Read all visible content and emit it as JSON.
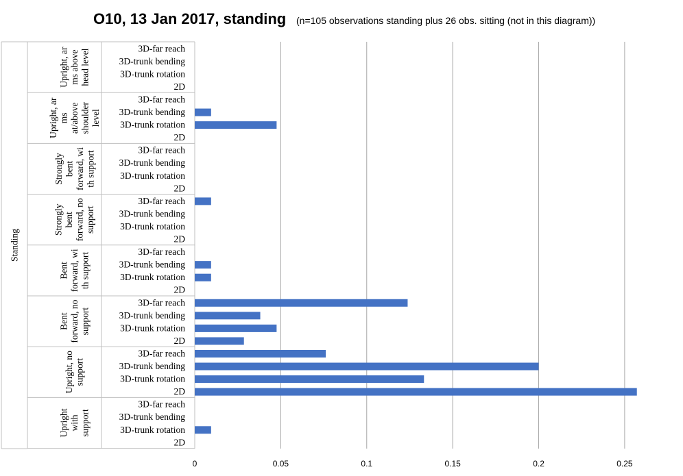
{
  "chart_data": {
    "type": "bar",
    "orientation": "horizontal",
    "title": "O10, 13 Jan 2017, standing",
    "subtitle": "(n=105 observations standing plus 26 obs. sitting (not in this diagram))",
    "outer_group": "Standing",
    "xlim": [
      0,
      0.26
    ],
    "xticks": [
      0,
      0.05,
      0.1,
      0.15,
      0.2,
      0.25
    ],
    "grid": true,
    "bar_color": "#4472c4",
    "groups": [
      {
        "label": "Upright, arms above head level",
        "label_lines": [
          "Upright, ar",
          "ms above",
          "head level"
        ],
        "items": [
          {
            "category": "3D-far reach",
            "value": 0
          },
          {
            "category": "3D-trunk bending",
            "value": 0
          },
          {
            "category": "3D-trunk rotation",
            "value": 0
          },
          {
            "category": "2D",
            "value": 0
          }
        ]
      },
      {
        "label": "Upright, arms at/above shoulder level",
        "label_lines": [
          "Upright, ar",
          "ms",
          "at/above",
          "shoulder",
          "level"
        ],
        "items": [
          {
            "category": "3D-far reach",
            "value": 0
          },
          {
            "category": "3D-trunk bending",
            "value": 0.0095
          },
          {
            "category": "3D-trunk rotation",
            "value": 0.0476
          },
          {
            "category": "2D",
            "value": 0
          }
        ]
      },
      {
        "label": "Strongly bent forward, with support",
        "label_lines": [
          "Strongly",
          "bent",
          "forward, wi",
          "th support"
        ],
        "items": [
          {
            "category": "3D-far reach",
            "value": 0
          },
          {
            "category": "3D-trunk bending",
            "value": 0
          },
          {
            "category": "3D-trunk rotation",
            "value": 0
          },
          {
            "category": "2D",
            "value": 0
          }
        ]
      },
      {
        "label": "Strongly bent forward, no support",
        "label_lines": [
          "Strongly",
          "bent",
          "forward, no",
          "support"
        ],
        "items": [
          {
            "category": "3D-far reach",
            "value": 0.0095
          },
          {
            "category": "3D-trunk bending",
            "value": 0
          },
          {
            "category": "3D-trunk rotation",
            "value": 0
          },
          {
            "category": "2D",
            "value": 0
          }
        ]
      },
      {
        "label": "Bent forward, with support",
        "label_lines": [
          "Bent",
          "forward, wi",
          "th support"
        ],
        "items": [
          {
            "category": "3D-far reach",
            "value": 0
          },
          {
            "category": "3D-trunk bending",
            "value": 0.0095
          },
          {
            "category": "3D-trunk rotation",
            "value": 0.0095
          },
          {
            "category": "2D",
            "value": 0
          }
        ]
      },
      {
        "label": "Bent forward, no support",
        "label_lines": [
          "Bent",
          "forward, no",
          "support"
        ],
        "items": [
          {
            "category": "3D-far reach",
            "value": 0.1238
          },
          {
            "category": "3D-trunk bending",
            "value": 0.0381
          },
          {
            "category": "3D-trunk rotation",
            "value": 0.0476
          },
          {
            "category": "2D",
            "value": 0.0286
          }
        ]
      },
      {
        "label": "Upright, no support",
        "label_lines": [
          "Upright, no",
          "support"
        ],
        "items": [
          {
            "category": "3D-far reach",
            "value": 0.0762
          },
          {
            "category": "3D-trunk bending",
            "value": 0.2
          },
          {
            "category": "3D-trunk rotation",
            "value": 0.1333
          },
          {
            "category": "2D",
            "value": 0.2571
          }
        ]
      },
      {
        "label": "Upright with support",
        "label_lines": [
          "Upright",
          "with",
          "support"
        ],
        "items": [
          {
            "category": "3D-far reach",
            "value": 0
          },
          {
            "category": "3D-trunk bending",
            "value": 0
          },
          {
            "category": "3D-trunk rotation",
            "value": 0.0095
          },
          {
            "category": "2D",
            "value": 0
          }
        ]
      }
    ]
  }
}
